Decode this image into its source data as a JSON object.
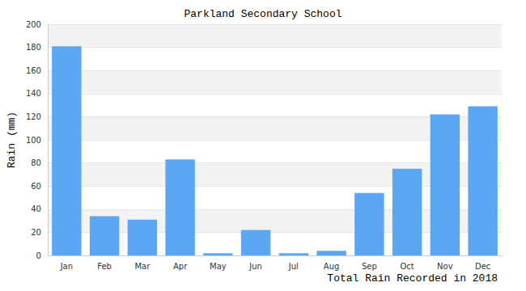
{
  "chart_data": {
    "type": "bar",
    "title": "Parkland Secondary School",
    "ylabel": "Rain (mm)",
    "xlabel": "Total Rain Recorded in 2018",
    "categories": [
      "Jan",
      "Feb",
      "Mar",
      "Apr",
      "May",
      "Jun",
      "Jul",
      "Aug",
      "Sep",
      "Oct",
      "Nov",
      "Dec"
    ],
    "values": [
      181,
      34,
      31,
      83,
      2,
      22,
      2,
      4,
      54,
      75,
      122,
      129
    ],
    "color": "#5ba7f4",
    "ylim": [
      0,
      200
    ],
    "yticks": [
      0,
      20,
      40,
      60,
      80,
      100,
      120,
      140,
      160,
      180,
      200
    ],
    "grid": true
  }
}
